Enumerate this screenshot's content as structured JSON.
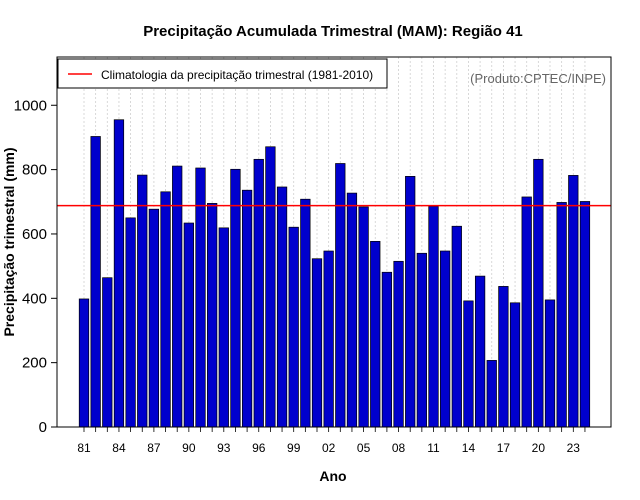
{
  "chart_data": {
    "type": "bar",
    "title": "Precipitação Acumulada Trimestral (MAM): Região 41",
    "xlabel": "Ano",
    "ylabel": "Precipitação trimestral (mm)",
    "credit": "(Produto:CPTEC/INPE)",
    "ylim": [
      0,
      1150
    ],
    "y_ticks": [
      0,
      200,
      400,
      600,
      800,
      1000
    ],
    "grid": true,
    "legend": {
      "placement": "top-left",
      "entries": [
        {
          "label": "Climatologia da precipitação trimestral (1981-2010)",
          "color": "#ff0000"
        }
      ]
    },
    "climatology": 688,
    "categories": [
      "81",
      "82",
      "83",
      "84",
      "85",
      "86",
      "87",
      "88",
      "89",
      "90",
      "91",
      "92",
      "93",
      "94",
      "95",
      "96",
      "97",
      "98",
      "99",
      "00",
      "01",
      "02",
      "03",
      "04",
      "05",
      "06",
      "07",
      "08",
      "09",
      "10",
      "11",
      "12",
      "13",
      "14",
      "15",
      "16",
      "17",
      "18",
      "19",
      "20",
      "21",
      "22",
      "23",
      "24"
    ],
    "x_tick_labels": [
      "81",
      "84",
      "87",
      "90",
      "93",
      "96",
      "99",
      "02",
      "05",
      "08",
      "11",
      "14",
      "17",
      "20",
      "23"
    ],
    "values": [
      398,
      903,
      464,
      955,
      650,
      783,
      677,
      731,
      811,
      634,
      805,
      695,
      619,
      801,
      736,
      832,
      871,
      746,
      621,
      708,
      523,
      547,
      819,
      727,
      684,
      577,
      481,
      515,
      779,
      540,
      686,
      547,
      624,
      392,
      469,
      207,
      437,
      386,
      715,
      832,
      395,
      698,
      782,
      701
    ],
    "bar_color": "#0000cd",
    "bar_edge_color": "#000000"
  }
}
